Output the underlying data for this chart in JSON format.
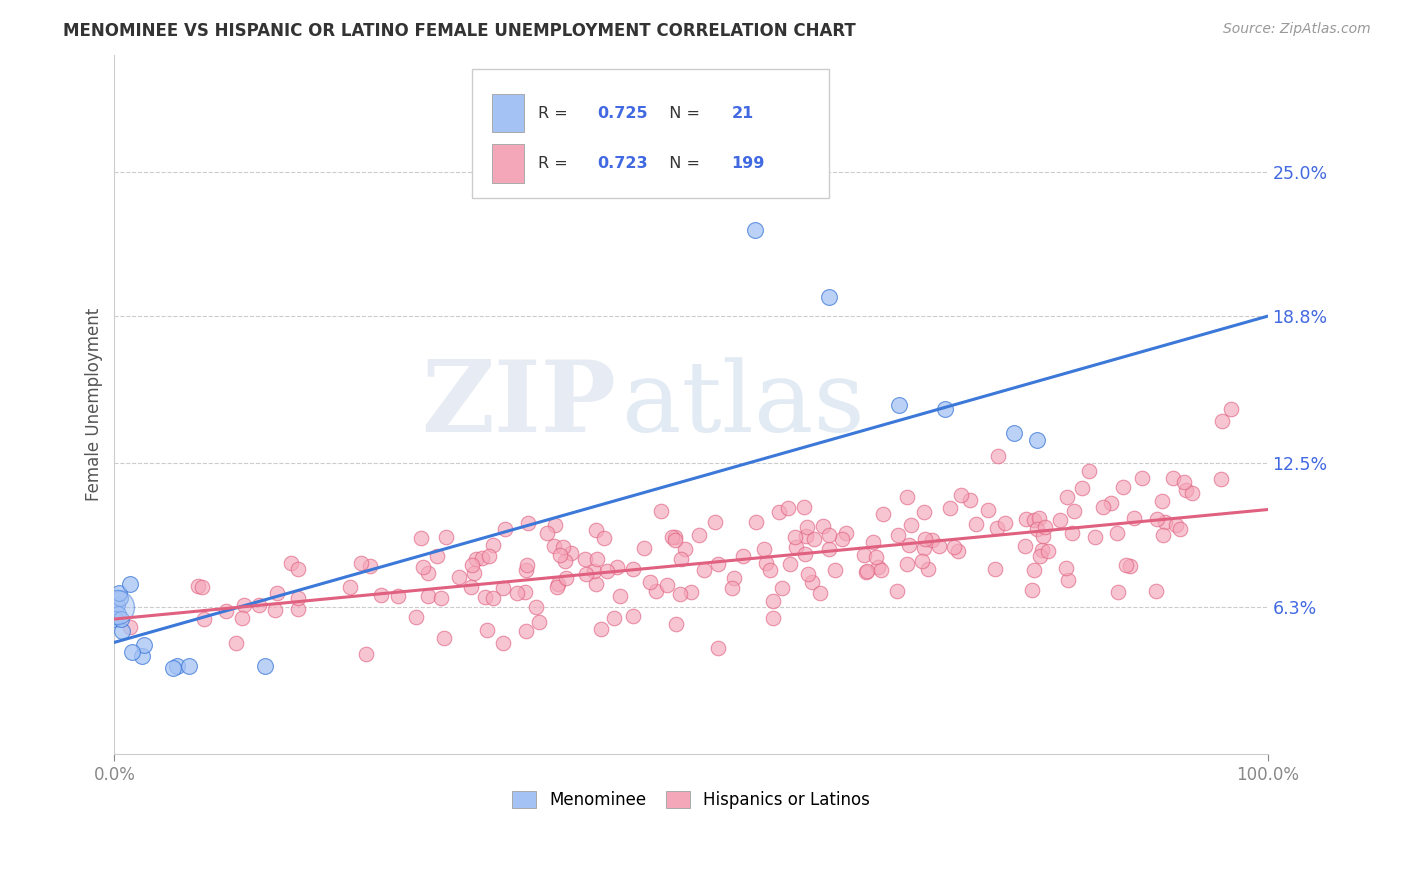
{
  "title": "MENOMINEE VS HISPANIC OR LATINO FEMALE UNEMPLOYMENT CORRELATION CHART",
  "source": "Source: ZipAtlas.com",
  "ylabel": "Female Unemployment",
  "xlim": [
    0.0,
    1.0
  ],
  "ylim": [
    0.0,
    0.3
  ],
  "yticks": [
    0.063,
    0.125,
    0.188,
    0.25
  ],
  "ytick_labels": [
    "6.3%",
    "12.5%",
    "18.8%",
    "25.0%"
  ],
  "xtick_labels": [
    "0.0%",
    "100.0%"
  ],
  "menominee_R": "0.725",
  "menominee_N": "21",
  "hispanic_R": "0.723",
  "hispanic_N": "199",
  "blue_color": "#a4c2f4",
  "pink_color": "#f4a7b9",
  "line_blue": "#3b78d8",
  "line_pink": "#e06080",
  "axis_color": "#4169e1",
  "blue_line_y0": 0.048,
  "blue_line_y1": 0.188,
  "pink_line_y0": 0.058,
  "pink_line_y1": 0.105,
  "watermark_zip": "ZIP",
  "watermark_atlas": "atlas",
  "title_fontsize": 12,
  "source_fontsize": 10
}
